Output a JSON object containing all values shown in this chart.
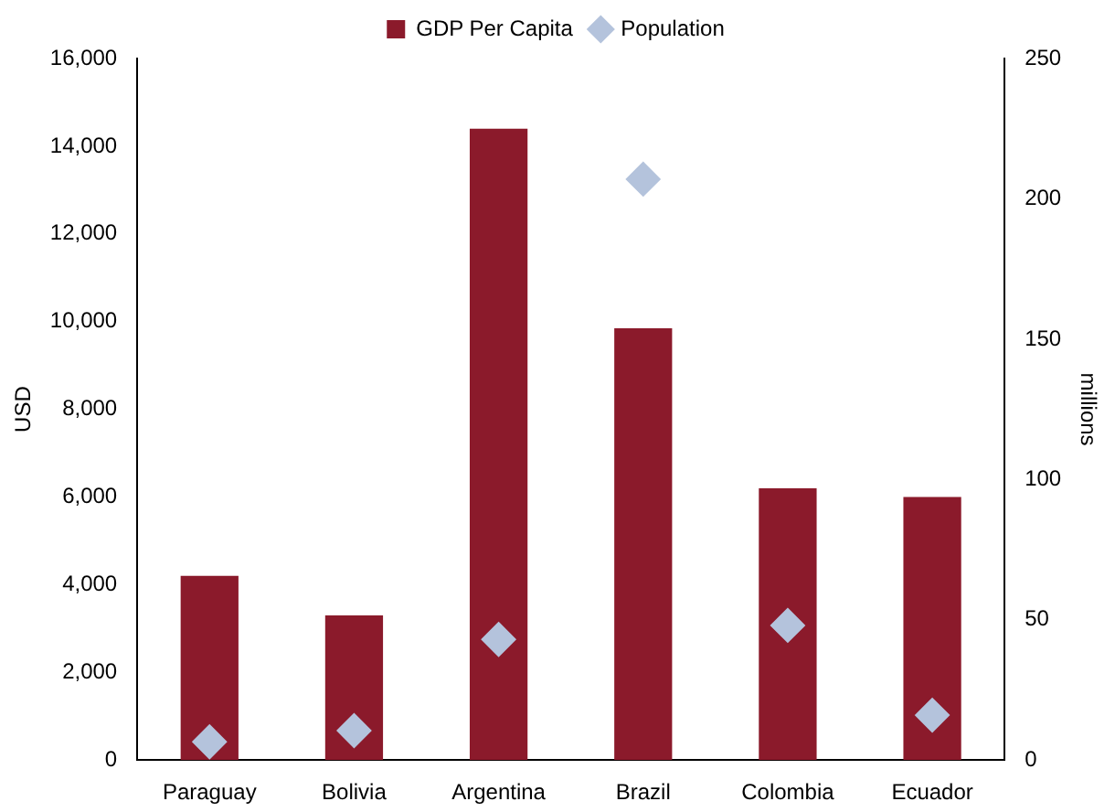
{
  "chart_data": {
    "type": "bar",
    "categories": [
      "Paraguay",
      "Bolivia",
      "Argentina",
      "Brazil",
      "Colombia",
      "Ecuador"
    ],
    "series": [
      {
        "name": "GDP Per Capita",
        "color": "#8b1a2b",
        "values": [
          4200,
          3300,
          14400,
          9850,
          6200,
          6000
        ]
      },
      {
        "name": "Population",
        "type": "scatter",
        "axis": "y2",
        "color": "#b4c3dc",
        "marker": "diamond",
        "values": [
          6.5,
          10.5,
          43,
          207,
          48,
          16
        ]
      }
    ],
    "ylabel": "USD",
    "y2label": "millions",
    "ylim": [
      0,
      16000
    ],
    "yticks": [
      0,
      {
        "value": 2000,
        "label": "2,000"
      },
      {
        "value": 4000,
        "label": "4,000"
      },
      {
        "value": 6000,
        "label": "6,000"
      },
      {
        "value": 8000,
        "label": "8,000"
      },
      {
        "value": 10000,
        "label": "10,000"
      },
      {
        "value": 12000,
        "label": "12,000"
      },
      {
        "value": 14000,
        "label": "14,000"
      },
      {
        "value": 16000,
        "label": "16,000"
      }
    ],
    "y2lim": [
      0,
      250
    ],
    "y2ticks": [
      0,
      50,
      100,
      150,
      200,
      250
    ],
    "grid": false,
    "legend": "top"
  }
}
